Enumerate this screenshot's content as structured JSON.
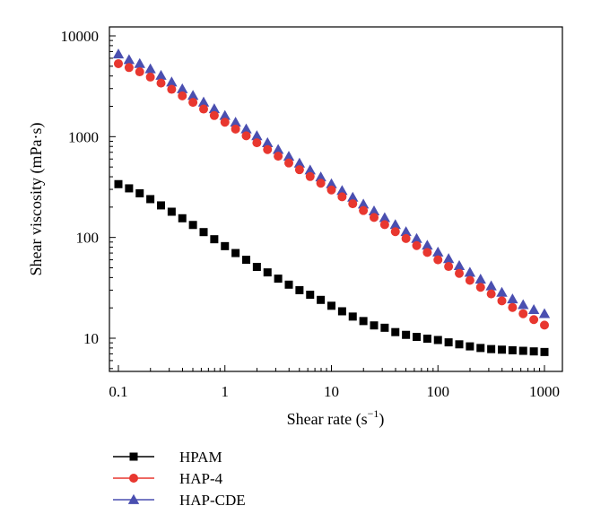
{
  "chart_data": {
    "type": "scatter",
    "xlabel": "Shear rate (s",
    "xlabel_sup": "−1",
    "xlabel_close": ")",
    "ylabel": "Shear viscosity (mPa·s)",
    "x_scale": "log",
    "y_scale": "log",
    "xlim": [
      0.1,
      1000
    ],
    "ylim": [
      5,
      10000
    ],
    "x_ticks": [
      0.1,
      1,
      10,
      100,
      1000
    ],
    "x_tick_labels": [
      "0.1",
      "1",
      "10",
      "100",
      "1000"
    ],
    "y_ticks": [
      10,
      100,
      1000,
      10000
    ],
    "y_tick_labels": [
      "10",
      "100",
      "1000",
      "10000"
    ],
    "grid": false,
    "legend_position": "bottom-left, below plot",
    "x": [
      0.1,
      0.1259,
      0.1585,
      0.1995,
      0.2512,
      0.3162,
      0.3981,
      0.5012,
      0.631,
      0.7943,
      1,
      1.259,
      1.585,
      1.995,
      2.512,
      3.162,
      3.981,
      5.012,
      6.31,
      7.943,
      10,
      12.59,
      15.85,
      19.95,
      25.12,
      31.62,
      39.81,
      50.12,
      63.1,
      79.43,
      100,
      125.9,
      158.5,
      199.5,
      251.2,
      316.2,
      398.1,
      501.2,
      631,
      794.3,
      1000
    ],
    "series": [
      {
        "name": "HPAM",
        "marker": "square",
        "color": "#000000",
        "values": [
          338,
          307,
          274,
          240,
          208,
          180,
          155,
          133,
          113,
          96,
          82,
          70,
          60,
          51,
          45,
          39,
          34,
          30,
          27,
          24,
          21,
          18.5,
          16.4,
          14.8,
          13.4,
          12.7,
          11.5,
          10.8,
          10.3,
          9.9,
          9.6,
          9.1,
          8.7,
          8.3,
          8.0,
          7.8,
          7.7,
          7.6,
          7.5,
          7.4,
          7.3
        ]
      },
      {
        "name": "HAP-4",
        "marker": "circle",
        "color": "#e8372f",
        "values": [
          5300,
          4850,
          4400,
          3900,
          3400,
          2950,
          2540,
          2190,
          1880,
          1620,
          1390,
          1190,
          1020,
          870,
          745,
          640,
          548,
          470,
          402,
          345,
          296,
          253,
          216,
          185,
          158,
          134,
          114,
          97.5,
          83,
          71,
          60,
          51.5,
          44,
          37.5,
          32,
          27.5,
          23.5,
          20.2,
          17.5,
          15.3,
          13.5
        ]
      },
      {
        "name": "HAP-CDE",
        "marker": "triangle",
        "color": "#4a4fb0",
        "values": [
          6600,
          5800,
          5300,
          4700,
          4050,
          3480,
          2980,
          2560,
          2200,
          1890,
          1620,
          1390,
          1190,
          1020,
          870,
          745,
          637,
          545,
          466,
          398,
          340,
          292,
          250,
          214,
          183,
          157,
          134,
          114,
          97.5,
          83.5,
          71.5,
          61.5,
          52.5,
          45,
          38.5,
          33,
          28.5,
          24.5,
          21.5,
          19.2,
          17.5
        ]
      }
    ]
  }
}
